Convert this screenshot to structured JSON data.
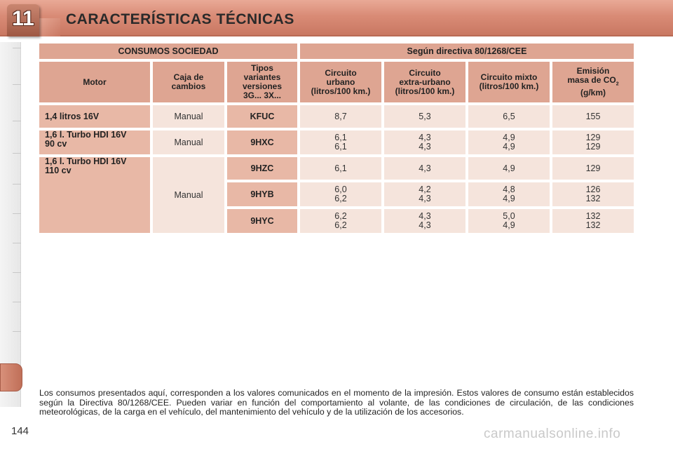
{
  "chapter": {
    "number": "11",
    "title": "CARACTERÍSTICAS TÉCNICAS"
  },
  "table": {
    "group_left": "CONSUMOS SOCIEDAD",
    "group_right": "Según directiva 80/1268/CEE",
    "headers": {
      "motor": "Motor",
      "gearbox": [
        "Caja de",
        "cambios"
      ],
      "types": [
        "Tipos",
        "variantes",
        "versiones",
        "3G... 3X..."
      ],
      "urban": [
        "Circuito",
        "urbano",
        "(litros/100 km.)"
      ],
      "extra_urban": [
        "Circuito",
        "extra-urbano",
        "(litros/100 km.)"
      ],
      "mixed": [
        "Circuito mixto",
        "(litros/100 km.)"
      ],
      "emission": [
        "Emisión",
        "masa de CO",
        "2",
        "(g/km)"
      ]
    },
    "rows": [
      {
        "engine": [
          "1,4 litros 16V"
        ],
        "gearbox": "Manual",
        "code": "KFUC",
        "urban": [
          "8,7"
        ],
        "extra": [
          "5,3"
        ],
        "mixed": [
          "6,5"
        ],
        "co2": [
          "155"
        ]
      },
      {
        "engine": [
          "1,6 l. Turbo HDI 16V",
          "90 cv"
        ],
        "gearbox": "Manual",
        "code": "9HXC",
        "urban": [
          "6,1",
          "6,1"
        ],
        "extra": [
          "4,3",
          "4,3"
        ],
        "mixed": [
          "4,9",
          "4,9"
        ],
        "co2": [
          "129",
          "129"
        ]
      },
      {
        "engine": [
          "1,6 l. Turbo HDI 16V",
          "110 cv"
        ],
        "gearbox": "Manual",
        "code": "9HZC",
        "urban": [
          "6,1"
        ],
        "extra": [
          "4,3"
        ],
        "mixed": [
          "4,9"
        ],
        "co2": [
          "129"
        ]
      },
      {
        "code": "9HYB",
        "urban": [
          "6,0",
          "6,2"
        ],
        "extra": [
          "4,2",
          "4,3"
        ],
        "mixed": [
          "4,8",
          "4,9"
        ],
        "co2": [
          "126",
          "132"
        ]
      },
      {
        "code": "9HYC",
        "urban": [
          "6,2",
          "6,2"
        ],
        "extra": [
          "4,3",
          "4,3"
        ],
        "mixed": [
          "5,0",
          "4,9"
        ],
        "co2": [
          "132",
          "132"
        ]
      }
    ]
  },
  "footnote": "Los consumos presentados aquí, corresponden a los valores comunicados en el momento de la impresión. Estos valores de consumo están establecidos según la Directiva 80/1268/CEE. Pueden variar en función del comportamiento al volante, de las condiciones de circulación, de las condiciones meteorológicas, de la carga en el vehículo, del mantenimiento del vehículo y de la utilización de los accesorios.",
  "page_number": "144",
  "watermark": "carmanualsonline.info",
  "colors": {
    "header": "#d98b76",
    "cell_header": "#dea592",
    "cell_label": "#e8b8a6",
    "cell_value": "#f5e4dc"
  }
}
